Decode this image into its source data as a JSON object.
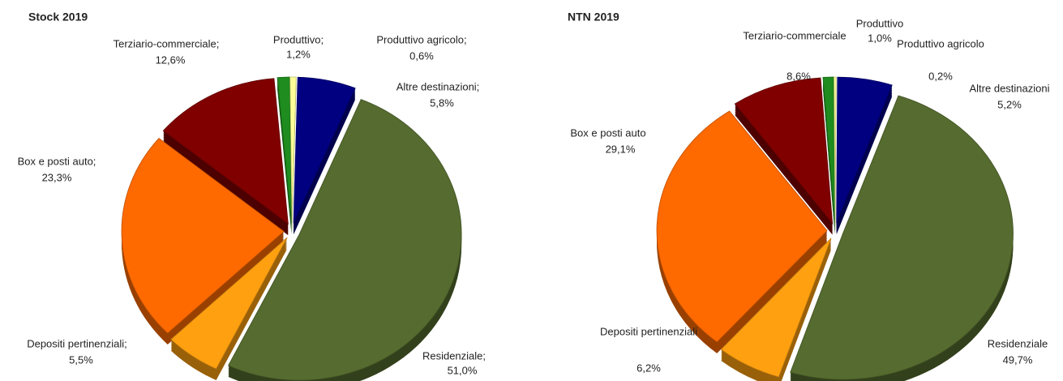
{
  "chart_data": [
    {
      "type": "pie",
      "title": "Stock 2019",
      "categories": [
        "Produttivo;",
        "Produttivo agricolo;",
        "Altre destinazioni;",
        "Residenziale;",
        "Depositi pertinenziali;",
        "Box e posti auto;",
        "Terziario-commerciale;"
      ],
      "values": [
        1.2,
        0.6,
        5.8,
        51.0,
        5.5,
        23.3,
        12.6
      ],
      "value_labels": [
        "1,2%",
        "0,6%",
        "5,8%",
        "51,0%",
        "5,5%",
        "23,3%",
        "12,6%"
      ],
      "colors": [
        "#1e8c1e",
        "#ffff99",
        "#000080",
        "#556b2f",
        "#ffa010",
        "#ff6a00",
        "#800000"
      ]
    },
    {
      "type": "pie",
      "title": "NTN 2019",
      "categories": [
        "Produttivo",
        "Produttivo agricolo",
        "Altre destinazioni",
        "Residenziale",
        "Depositi pertinenziali",
        "Box e posti auto",
        "Terziario-commerciale"
      ],
      "values": [
        1.0,
        0.2,
        5.2,
        49.7,
        6.2,
        29.1,
        8.6
      ],
      "value_labels": [
        "1,0%",
        "0,2%",
        "5,2%",
        "49,7%",
        "6,2%",
        "29,1%",
        "8,6%"
      ],
      "colors": [
        "#1e8c1e",
        "#ffff99",
        "#000080",
        "#556b2f",
        "#ffa010",
        "#ff6a00",
        "#800000"
      ]
    }
  ]
}
